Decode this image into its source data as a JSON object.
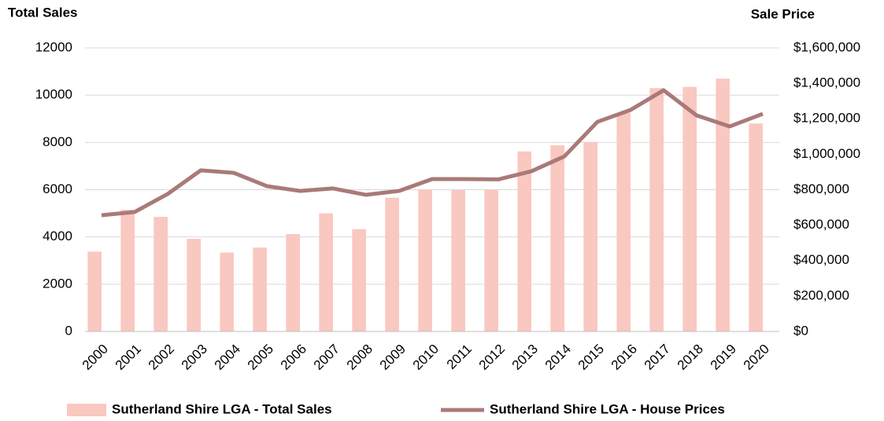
{
  "chart_data": {
    "type": "bar-line",
    "y_label": "Total Sales",
    "y2_label": "Sale Price",
    "categories": [
      "2000",
      "2001",
      "2002",
      "2003",
      "2004",
      "2005",
      "2006",
      "2007",
      "2008",
      "2009",
      "2010",
      "2011",
      "2012",
      "2013",
      "2014",
      "2015",
      "2016",
      "2017",
      "2018",
      "2019",
      "2020"
    ],
    "series": [
      {
        "name": "Sutherland Shire LGA - Total Sales",
        "type": "bar",
        "color": "#f9c8c0",
        "values": [
          3380,
          5150,
          4850,
          3920,
          3340,
          3550,
          4120,
          5000,
          4330,
          5660,
          6000,
          5980,
          6000,
          7620,
          7880,
          8020,
          9250,
          10300,
          10350,
          10700,
          8800
        ]
      },
      {
        "name": "Sutherland Shire LGA - House Prices",
        "type": "line",
        "axis": "y2",
        "color": "#a97a78",
        "values": [
          656000,
          674000,
          776000,
          909000,
          895000,
          820000,
          793000,
          807000,
          771000,
          793000,
          860000,
          860000,
          858000,
          904000,
          988000,
          1183000,
          1250000,
          1361000,
          1219000,
          1157000,
          1228000
        ]
      }
    ],
    "ylim": [
      0,
      12000
    ],
    "yticks": [
      0,
      2000,
      4000,
      6000,
      8000,
      10000,
      12000
    ],
    "y2lim": [
      0,
      1600000
    ],
    "y2ticks": [
      {
        "value": 0,
        "label": "$0"
      },
      {
        "value": 200000,
        "label": "$200,000"
      },
      {
        "value": 400000,
        "label": "$400,000"
      },
      {
        "value": 600000,
        "label": "$600,000"
      },
      {
        "value": 800000,
        "label": "$800,000"
      },
      {
        "value": 1000000,
        "label": "$1,000,000"
      },
      {
        "value": 1200000,
        "label": "$1,200,000"
      },
      {
        "value": 1400000,
        "label": "$1,400,000"
      },
      {
        "value": 1600000,
        "label": "$1,600,000"
      }
    ],
    "grid": true,
    "legend": "bottom"
  }
}
